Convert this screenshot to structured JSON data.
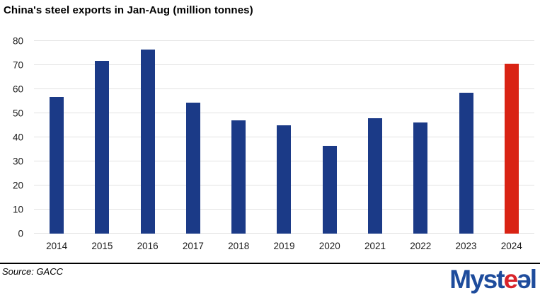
{
  "chart_data": {
    "type": "bar",
    "title": "China's steel exports in Jan-Aug (million tonnes)",
    "categories": [
      "2014",
      "2015",
      "2016",
      "2017",
      "2018",
      "2019",
      "2020",
      "2021",
      "2022",
      "2023",
      "2024"
    ],
    "values": [
      56.9,
      71.9,
      76.4,
      54.5,
      47.1,
      44.9,
      36.6,
      48.0,
      46.2,
      58.5,
      70.6
    ],
    "xlabel": "",
    "ylabel": "",
    "ylim": [
      0,
      80
    ],
    "ytick_step": 10,
    "yticks": [
      0,
      10,
      20,
      30,
      40,
      50,
      60,
      70,
      80
    ],
    "grid": "horizontal",
    "legend": "none",
    "bar_colors": {
      "default": "#1b3a87",
      "highlight": "#d92314"
    },
    "highlight_index": 10,
    "gridline_color": "#e2e2e2"
  },
  "footer": {
    "source": "Source: GACC",
    "logo": {
      "name": "Mysteel",
      "text_parts": [
        {
          "text": "Myst",
          "color": "#1e4c9c"
        },
        {
          "text": "e",
          "color": "#d8232a"
        },
        {
          "text": "ə",
          "color": "#1e4c9c"
        },
        {
          "text": "l",
          "color": "#1e4c9c"
        }
      ]
    }
  }
}
